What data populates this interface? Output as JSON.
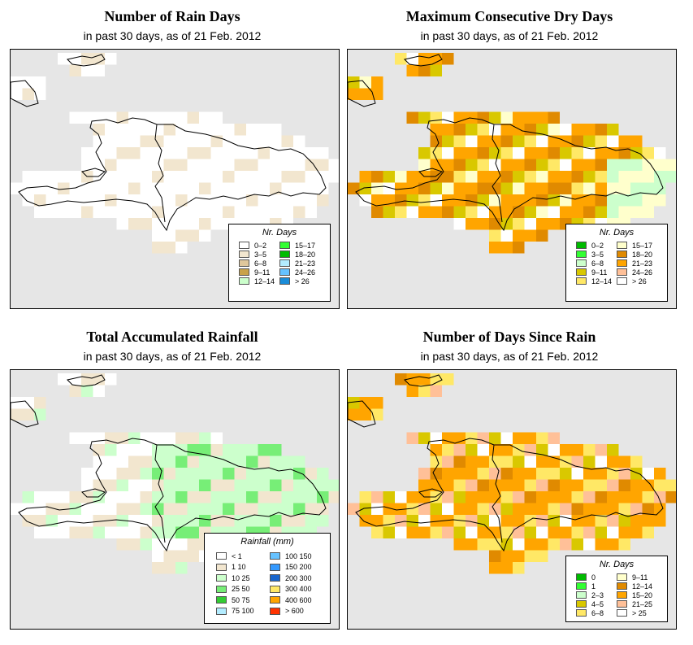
{
  "panels": [
    {
      "id": "rain-days",
      "title": "Number of Rain Days",
      "subtitle": "in past 30 days, as of  21 Feb. 2012",
      "legend": {
        "title": "Nr. Days",
        "items": [
          {
            "label": "0–2",
            "color": "#ffffff"
          },
          {
            "label": "3–5",
            "color": "#f2e6cf"
          },
          {
            "label": "6–8",
            "color": "#dfc79c"
          },
          {
            "label": "9–11",
            "color": "#c9a24a"
          },
          {
            "label": "12–14",
            "color": "#ccffcc"
          },
          {
            "label": "15–17",
            "color": "#33ff33"
          },
          {
            "label": "18–20",
            "color": "#00bb00"
          },
          {
            "label": "21–23",
            "color": "#b3ecff"
          },
          {
            "label": "24–26",
            "color": "#66c2ff"
          },
          {
            "label": "> 26",
            "color": "#1a8cd8"
          }
        ]
      }
    },
    {
      "id": "dry-days",
      "title": "Maximum Consecutive Dry Days",
      "subtitle": "in past 30 days, as of  21 Feb. 2012",
      "legend": {
        "title": "Nr. Days",
        "items": [
          {
            "label": "0–2",
            "color": "#00bb00"
          },
          {
            "label": "3–5",
            "color": "#33ff33"
          },
          {
            "label": "6–8",
            "color": "#ccffcc"
          },
          {
            "label": "9–11",
            "color": "#d9c800"
          },
          {
            "label": "12–14",
            "color": "#ffe866"
          },
          {
            "label": "15–17",
            "color": "#ffffcc"
          },
          {
            "label": "18–20",
            "color": "#e08a00"
          },
          {
            "label": "21–23",
            "color": "#ffa500"
          },
          {
            "label": "24–26",
            "color": "#ffc098"
          },
          {
            "label": "> 26",
            "color": "#ffffff"
          }
        ]
      }
    },
    {
      "id": "rainfall",
      "title": "Total Accumulated Rainfall",
      "subtitle": "in past 30 days, as of  21 Feb. 2012",
      "legend": {
        "title": "Rainfall (mm)",
        "items": [
          {
            "label": "< 1",
            "color": "#ffffff"
          },
          {
            "label": "1   10",
            "color": "#f2e6cf"
          },
          {
            "label": "10   25",
            "color": "#ccffcc"
          },
          {
            "label": "25   50",
            "color": "#77ee77"
          },
          {
            "label": "50   75",
            "color": "#33cc33"
          },
          {
            "label": "75  100",
            "color": "#b3ecff"
          },
          {
            "label": "100  150",
            "color": "#66c2ff"
          },
          {
            "label": "150  200",
            "color": "#3399ff"
          },
          {
            "label": "200  300",
            "color": "#1a66cc"
          },
          {
            "label": "300  400",
            "color": "#ffe866"
          },
          {
            "label": "400  600",
            "color": "#ffa500"
          },
          {
            "label": "> 600",
            "color": "#ff3300"
          }
        ]
      }
    },
    {
      "id": "since-rain",
      "title": "Number of Days Since Rain",
      "subtitle": "in past 30 days, as of  21 Feb. 2012",
      "legend": {
        "title": "Nr. Days",
        "items": [
          {
            "label": "0",
            "color": "#00bb00"
          },
          {
            "label": "1",
            "color": "#33ff33"
          },
          {
            "label": "2–3",
            "color": "#ccffcc"
          },
          {
            "label": "4–5",
            "color": "#d9c800"
          },
          {
            "label": "6–8",
            "color": "#ffe866"
          },
          {
            "label": "9–11",
            "color": "#ffffcc"
          },
          {
            "label": "12–14",
            "color": "#e08a00"
          },
          {
            "label": "15–20",
            "color": "#ffa500"
          },
          {
            "label": "21–25",
            "color": "#ffc098"
          },
          {
            "label": "> 25",
            "color": "#ffffff"
          }
        ]
      }
    }
  ]
}
